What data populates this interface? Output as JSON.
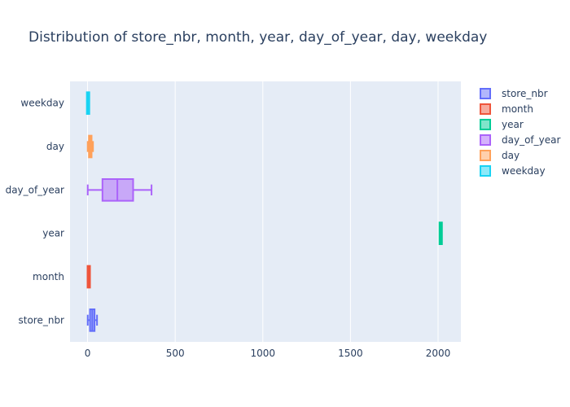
{
  "chart_data": {
    "type": "box",
    "orientation": "horizontal",
    "title": "Distribution of store_nbr, month, year, day_of_year, day, weekday",
    "xlabel": "",
    "ylabel": "",
    "xlim": [
      -100,
      2130
    ],
    "xticks": [
      0,
      500,
      1000,
      1500,
      2000
    ],
    "xtick_labels": [
      "0",
      "500",
      "1000",
      "1500",
      "2000"
    ],
    "categories": [
      "store_nbr",
      "month",
      "year",
      "day_of_year",
      "day",
      "weekday"
    ],
    "series": [
      {
        "name": "store_nbr",
        "color": "#636efa",
        "min": 1,
        "q1": 14,
        "median": 27,
        "q3": 40,
        "max": 54
      },
      {
        "name": "month",
        "color": "#ef553b",
        "min": 1,
        "q1": 4,
        "median": 7,
        "q3": 10,
        "max": 12
      },
      {
        "name": "year",
        "color": "#00cc96",
        "min": 2013,
        "q1": 2014,
        "median": 2015,
        "q3": 2016,
        "max": 2017
      },
      {
        "name": "day_of_year",
        "color": "#ab63fa",
        "min": 1,
        "q1": 85,
        "median": 170,
        "q3": 260,
        "max": 365
      },
      {
        "name": "day",
        "color": "#ffa15a",
        "min": 1,
        "q1": 8,
        "median": 16,
        "q3": 23,
        "max": 31
      },
      {
        "name": "weekday",
        "color": "#19d3f3",
        "min": 0,
        "q1": 1,
        "median": 3,
        "q3": 5,
        "max": 6
      }
    ],
    "legend_position": "right",
    "grid": true
  }
}
